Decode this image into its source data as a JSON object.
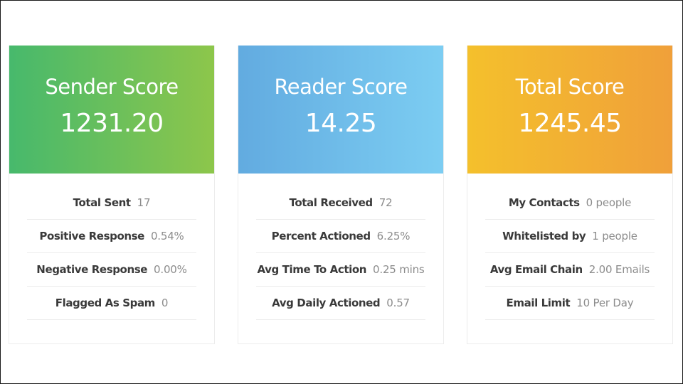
{
  "cards": [
    {
      "title": "Sender Score",
      "score": "1231.20",
      "stats": [
        {
          "label": "Total Sent",
          "value": "17"
        },
        {
          "label": "Positive Response",
          "value": "0.54%"
        },
        {
          "label": "Negative Response",
          "value": "0.00%"
        },
        {
          "label": "Flagged As Spam",
          "value": "0"
        }
      ]
    },
    {
      "title": "Reader Score",
      "score": "14.25",
      "stats": [
        {
          "label": "Total Received",
          "value": "72"
        },
        {
          "label": "Percent Actioned",
          "value": "6.25%"
        },
        {
          "label": "Avg Time To Action",
          "value": "0.25 mins"
        },
        {
          "label": "Avg Daily Actioned",
          "value": "0.57"
        }
      ]
    },
    {
      "title": "Total Score",
      "score": "1245.45",
      "stats": [
        {
          "label": "My Contacts",
          "value": "0 people"
        },
        {
          "label": "Whitelisted by",
          "value": "1 people"
        },
        {
          "label": "Avg Email Chain",
          "value": "2.00 Emails"
        },
        {
          "label": "Email Limit",
          "value": "10 Per Day"
        }
      ]
    }
  ],
  "colors": {
    "sender_gradient": [
      "#47b96c",
      "#8dc64b"
    ],
    "reader_gradient": [
      "#62abe0",
      "#7ccdf2"
    ],
    "total_gradient": [
      "#f4c02c",
      "#f0a03a"
    ],
    "label_text": "#3a3a3a",
    "value_text": "#8c8c8c"
  }
}
